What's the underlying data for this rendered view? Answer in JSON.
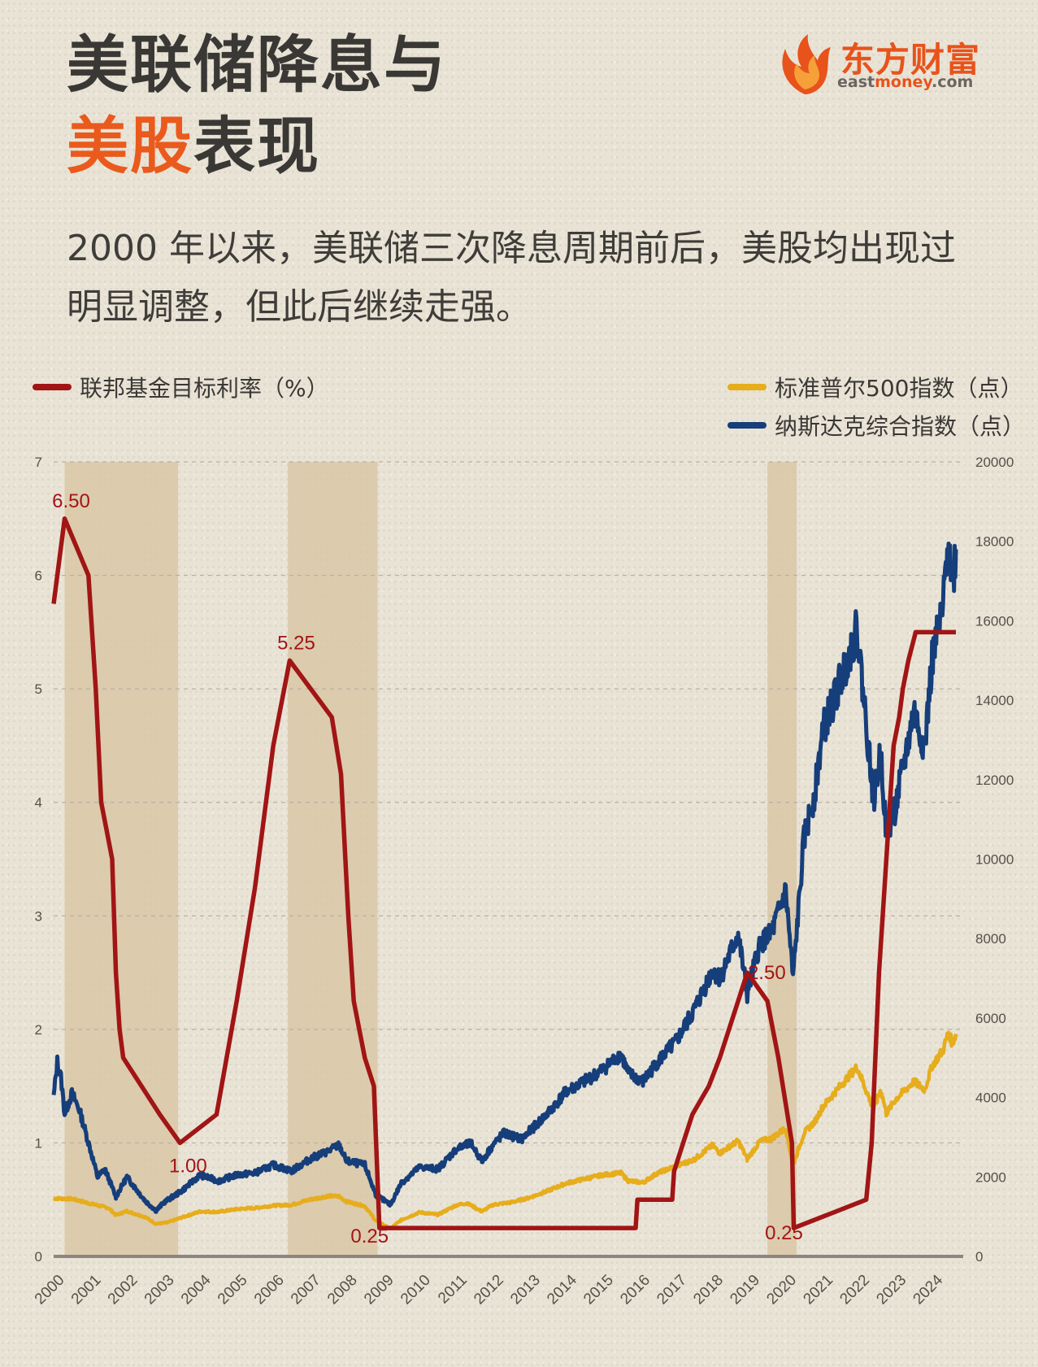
{
  "header": {
    "title_line1": "美联储降息与",
    "title_line2_highlight": "美股",
    "title_line2_rest": "表现",
    "subtitle": "2000 年以来，美联储三次降息周期前后，美股均出现过明显调整，但此后继续走强。"
  },
  "logo": {
    "cn": "东方财富",
    "en_prefix": "east",
    "en_highlight": "money",
    "en_suffix": ".com"
  },
  "legend": {
    "fed_rate": "联邦基金目标利率（%）",
    "sp500": "标准普尔500指数（点）",
    "nasdaq": "纳斯达克综合指数（点）"
  },
  "colors": {
    "fed_rate": "#a11515",
    "sp500": "#e6ad1c",
    "nasdaq": "#153e7a",
    "shade": "#d9c7a6",
    "title_highlight": "#ea5a1c",
    "brand": "#e8531b"
  },
  "chart_data": {
    "type": "line",
    "x_ticks": [
      "2000",
      "2001",
      "2002",
      "2003",
      "2004",
      "2005",
      "2006",
      "2007",
      "2008",
      "2009",
      "2010",
      "2011",
      "2012",
      "2013",
      "2014",
      "2015",
      "2016",
      "2017",
      "2018",
      "2019",
      "2020",
      "2021",
      "2022",
      "2023",
      "2024"
    ],
    "y_left": {
      "ticks": [
        0,
        1,
        2,
        3,
        4,
        5,
        6,
        7
      ],
      "range": [
        0,
        7
      ]
    },
    "y_right": {
      "ticks": [
        0,
        2000,
        4000,
        6000,
        8000,
        10000,
        12000,
        14000,
        16000,
        18000,
        20000
      ],
      "range": [
        0,
        20000
      ]
    },
    "shaded_periods": [
      [
        2000.3,
        2003.4
      ],
      [
        2006.4,
        2008.85
      ],
      [
        2019.5,
        2020.3
      ]
    ],
    "series": [
      {
        "name": "联邦基金目标利率（%）",
        "axis": "left",
        "points": [
          [
            2000.0,
            5.75
          ],
          [
            2000.1,
            6.0
          ],
          [
            2000.3,
            6.5
          ],
          [
            2000.95,
            6.0
          ],
          [
            2001.05,
            5.5
          ],
          [
            2001.15,
            5.0
          ],
          [
            2001.3,
            4.0
          ],
          [
            2001.45,
            3.75
          ],
          [
            2001.6,
            3.5
          ],
          [
            2001.7,
            2.5
          ],
          [
            2001.8,
            2.0
          ],
          [
            2001.9,
            1.75
          ],
          [
            2002.9,
            1.25
          ],
          [
            2003.45,
            1.0
          ],
          [
            2004.45,
            1.25
          ],
          [
            2005.0,
            2.25
          ],
          [
            2005.5,
            3.25
          ],
          [
            2006.0,
            4.5
          ],
          [
            2006.45,
            5.25
          ],
          [
            2007.6,
            4.75
          ],
          [
            2007.85,
            4.25
          ],
          [
            2008.05,
            3.0
          ],
          [
            2008.2,
            2.25
          ],
          [
            2008.5,
            1.75
          ],
          [
            2008.75,
            1.5
          ],
          [
            2008.9,
            0.25
          ],
          [
            2015.9,
            0.25
          ],
          [
            2015.95,
            0.5
          ],
          [
            2016.9,
            0.5
          ],
          [
            2016.95,
            0.75
          ],
          [
            2017.2,
            1.0
          ],
          [
            2017.45,
            1.25
          ],
          [
            2017.9,
            1.5
          ],
          [
            2018.2,
            1.75
          ],
          [
            2018.45,
            2.0
          ],
          [
            2018.7,
            2.25
          ],
          [
            2018.95,
            2.5
          ],
          [
            2019.5,
            2.25
          ],
          [
            2019.65,
            2.0
          ],
          [
            2019.8,
            1.75
          ],
          [
            2020.17,
            1.0
          ],
          [
            2020.22,
            0.25
          ],
          [
            2022.2,
            0.5
          ],
          [
            2022.35,
            1.0
          ],
          [
            2022.45,
            1.75
          ],
          [
            2022.55,
            2.5
          ],
          [
            2022.7,
            3.25
          ],
          [
            2022.85,
            4.0
          ],
          [
            2022.95,
            4.5
          ],
          [
            2023.1,
            4.75
          ],
          [
            2023.2,
            5.0
          ],
          [
            2023.35,
            5.25
          ],
          [
            2023.55,
            5.5
          ],
          [
            2024.65,
            5.5
          ]
        ]
      },
      {
        "name": "标准普尔500指数（点）",
        "axis": "right",
        "points": [
          [
            2000.0,
            1460
          ],
          [
            2000.5,
            1450
          ],
          [
            2001.0,
            1330
          ],
          [
            2001.5,
            1220
          ],
          [
            2001.7,
            1040
          ],
          [
            2002.0,
            1140
          ],
          [
            2002.5,
            990
          ],
          [
            2002.8,
            820
          ],
          [
            2003.1,
            850
          ],
          [
            2003.5,
            980
          ],
          [
            2004.0,
            1130
          ],
          [
            2004.5,
            1120
          ],
          [
            2005.0,
            1190
          ],
          [
            2005.5,
            1220
          ],
          [
            2006.0,
            1280
          ],
          [
            2006.5,
            1300
          ],
          [
            2007.0,
            1430
          ],
          [
            2007.5,
            1520
          ],
          [
            2007.8,
            1510
          ],
          [
            2008.0,
            1380
          ],
          [
            2008.5,
            1270
          ],
          [
            2008.8,
            900
          ],
          [
            2009.2,
            700
          ],
          [
            2009.5,
            920
          ],
          [
            2010.0,
            1110
          ],
          [
            2010.5,
            1050
          ],
          [
            2011.0,
            1290
          ],
          [
            2011.3,
            1340
          ],
          [
            2011.7,
            1130
          ],
          [
            2012.0,
            1300
          ],
          [
            2012.5,
            1360
          ],
          [
            2013.0,
            1480
          ],
          [
            2013.5,
            1650
          ],
          [
            2014.0,
            1840
          ],
          [
            2014.5,
            1950
          ],
          [
            2015.0,
            2050
          ],
          [
            2015.5,
            2100
          ],
          [
            2015.7,
            1900
          ],
          [
            2016.1,
            1860
          ],
          [
            2016.5,
            2100
          ],
          [
            2017.0,
            2270
          ],
          [
            2017.5,
            2440
          ],
          [
            2018.0,
            2800
          ],
          [
            2018.2,
            2600
          ],
          [
            2018.7,
            2910
          ],
          [
            2018.95,
            2450
          ],
          [
            2019.3,
            2900
          ],
          [
            2019.6,
            2960
          ],
          [
            2020.0,
            3230
          ],
          [
            2020.2,
            2300
          ],
          [
            2020.5,
            3100
          ],
          [
            2020.8,
            3400
          ],
          [
            2021.0,
            3750
          ],
          [
            2021.5,
            4300
          ],
          [
            2021.95,
            4770
          ],
          [
            2022.4,
            3700
          ],
          [
            2022.6,
            4200
          ],
          [
            2022.75,
            3600
          ],
          [
            2023.0,
            3950
          ],
          [
            2023.5,
            4400
          ],
          [
            2023.8,
            4200
          ],
          [
            2024.0,
            4800
          ],
          [
            2024.3,
            5200
          ],
          [
            2024.45,
            5650
          ],
          [
            2024.55,
            5350
          ],
          [
            2024.65,
            5600
          ]
        ]
      },
      {
        "name": "纳斯达克综合指数（点）",
        "axis": "right",
        "points": [
          [
            2000.0,
            4000
          ],
          [
            2000.1,
            4900
          ],
          [
            2000.2,
            4500
          ],
          [
            2000.3,
            3600
          ],
          [
            2000.5,
            4100
          ],
          [
            2000.7,
            3700
          ],
          [
            2001.0,
            2700
          ],
          [
            2001.2,
            2000
          ],
          [
            2001.4,
            2200
          ],
          [
            2001.7,
            1500
          ],
          [
            2002.0,
            2000
          ],
          [
            2002.5,
            1400
          ],
          [
            2002.8,
            1150
          ],
          [
            2003.0,
            1350
          ],
          [
            2003.5,
            1650
          ],
          [
            2004.0,
            2050
          ],
          [
            2004.5,
            1900
          ],
          [
            2005.0,
            2050
          ],
          [
            2005.5,
            2100
          ],
          [
            2006.0,
            2300
          ],
          [
            2006.5,
            2150
          ],
          [
            2007.0,
            2450
          ],
          [
            2007.5,
            2650
          ],
          [
            2007.8,
            2800
          ],
          [
            2008.0,
            2400
          ],
          [
            2008.5,
            2300
          ],
          [
            2008.8,
            1550
          ],
          [
            2009.2,
            1300
          ],
          [
            2009.5,
            1850
          ],
          [
            2010.0,
            2250
          ],
          [
            2010.5,
            2200
          ],
          [
            2011.0,
            2700
          ],
          [
            2011.4,
            2850
          ],
          [
            2011.7,
            2400
          ],
          [
            2012.0,
            2800
          ],
          [
            2012.3,
            3100
          ],
          [
            2012.8,
            2950
          ],
          [
            2013.0,
            3150
          ],
          [
            2013.5,
            3600
          ],
          [
            2014.0,
            4150
          ],
          [
            2014.5,
            4400
          ],
          [
            2015.0,
            4700
          ],
          [
            2015.5,
            5100
          ],
          [
            2015.7,
            4600
          ],
          [
            2016.1,
            4400
          ],
          [
            2016.5,
            4900
          ],
          [
            2017.0,
            5400
          ],
          [
            2017.5,
            6200
          ],
          [
            2018.0,
            7200
          ],
          [
            2018.2,
            7000
          ],
          [
            2018.7,
            8100
          ],
          [
            2018.95,
            6600
          ],
          [
            2019.3,
            7900
          ],
          [
            2019.6,
            8100
          ],
          [
            2020.0,
            9200
          ],
          [
            2020.2,
            7000
          ],
          [
            2020.5,
            10500
          ],
          [
            2020.8,
            11700
          ],
          [
            2021.0,
            13200
          ],
          [
            2021.5,
            14500
          ],
          [
            2021.95,
            15800
          ],
          [
            2022.4,
            11500
          ],
          [
            2022.6,
            12700
          ],
          [
            2022.75,
            10600
          ],
          [
            2023.0,
            11300
          ],
          [
            2023.5,
            13700
          ],
          [
            2023.8,
            12800
          ],
          [
            2024.0,
            15000
          ],
          [
            2024.3,
            16300
          ],
          [
            2024.45,
            18400
          ],
          [
            2024.55,
            16800
          ],
          [
            2024.65,
            17800
          ]
        ]
      }
    ],
    "annotations": [
      {
        "text": "6.50",
        "x": 2000.3,
        "y": 6.5
      },
      {
        "text": "1.00",
        "x": 2003.45,
        "y": 1.0
      },
      {
        "text": "5.25",
        "x": 2006.45,
        "y": 5.25
      },
      {
        "text": "0.25",
        "x": 2008.9,
        "y": 0.25
      },
      {
        "text": "2.50",
        "x": 2018.95,
        "y": 2.5
      },
      {
        "text": "0.25",
        "x": 2020.22,
        "y": 0.25
      }
    ]
  }
}
